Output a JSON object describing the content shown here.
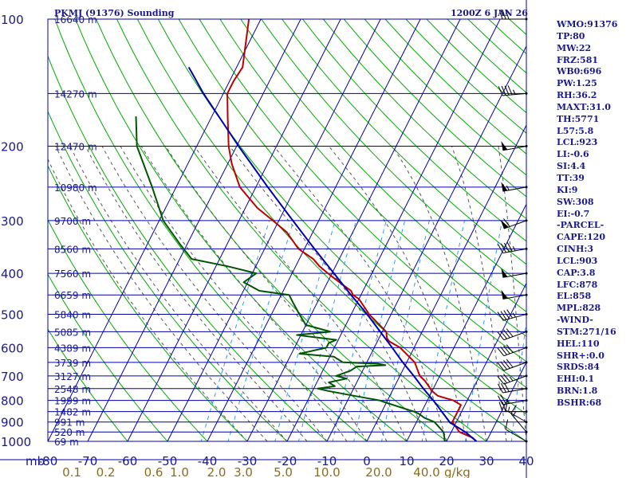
{
  "header": {
    "title": "PKMJ (91376) Sounding",
    "time": "1200Z  6 JAN 26"
  },
  "colors": {
    "frame": "#0000aa",
    "temperature": "#bb0000",
    "dewpoint": "#005500",
    "parcel": "#0000aa",
    "dry_adiabat": "#00aa00",
    "moist_adiabat": "#555555",
    "mixing_ratio": "#3399ff",
    "label": "#1a1a8a",
    "mixing_label": "#8a6d1a"
  },
  "chart_data": {
    "type": "skew-t",
    "title": "PKMJ (91376) Sounding",
    "pressure_levels": [
      100,
      200,
      300,
      400,
      500,
      600,
      700,
      800,
      900,
      1000
    ],
    "pressure_tick_labels": [
      "100",
      "200",
      "300",
      "400",
      "500",
      "600",
      "700",
      "800",
      "900",
      "1000"
    ],
    "pressure_unit_label": "mb",
    "temperature_ticks": [
      -80,
      -70,
      -60,
      -50,
      -40,
      -30,
      -20,
      -10,
      0,
      10,
      20,
      30,
      40
    ],
    "temperature_tick_labels": [
      "-80",
      "-70",
      "-60",
      "-50",
      "-40",
      "-30",
      "-20",
      "-10",
      "0",
      "10",
      "20",
      "30",
      "40"
    ],
    "xlim": [
      -80,
      40
    ],
    "ylim": [
      1000,
      100
    ],
    "height_labels": [
      {
        "p": 1000,
        "text": "69 m"
      },
      {
        "p": 950,
        "text": "520 m"
      },
      {
        "p": 900,
        "text": "991 m"
      },
      {
        "p": 850,
        "text": "1482 m"
      },
      {
        "p": 800,
        "text": "1999 m"
      },
      {
        "p": 750,
        "text": "2548 m"
      },
      {
        "p": 700,
        "text": "3127 m"
      },
      {
        "p": 650,
        "text": "3739 m"
      },
      {
        "p": 600,
        "text": "4389 m"
      },
      {
        "p": 550,
        "text": "5085 m"
      },
      {
        "p": 500,
        "text": "5840 m"
      },
      {
        "p": 450,
        "text": "6659 m"
      },
      {
        "p": 400,
        "text": "7560 m"
      },
      {
        "p": 350,
        "text": "8560 m"
      },
      {
        "p": 300,
        "text": "9700 m"
      },
      {
        "p": 250,
        "text": "10980 m"
      },
      {
        "p": 200,
        "text": "12470 m"
      },
      {
        "p": 150,
        "text": "14270 m"
      },
      {
        "p": 100,
        "text": "16640 m"
      }
    ],
    "mixing_ratio_labels": [
      "0.1",
      "0.2",
      "0.6",
      "1.0",
      "2.0",
      "3.0",
      "5.0",
      "10.0",
      "20.0",
      "40.0",
      "g/kg"
    ],
    "mixing_ratio_label_temps": [
      -74,
      -65.5,
      -53.5,
      -47,
      -37.7,
      -31,
      -21,
      -10,
      3,
      15
    ],
    "temperature": [
      {
        "p": 1000,
        "t": 27.5
      },
      {
        "p": 980,
        "t": 26
      },
      {
        "p": 950,
        "t": 22
      },
      {
        "p": 900,
        "t": 19
      },
      {
        "p": 850,
        "t": 19
      },
      {
        "p": 820,
        "t": 19
      },
      {
        "p": 800,
        "t": 16.5
      },
      {
        "p": 780,
        "t": 12
      },
      {
        "p": 760,
        "t": 10
      },
      {
        "p": 720,
        "t": 7
      },
      {
        "p": 700,
        "t": 5
      },
      {
        "p": 650,
        "t": 2
      },
      {
        "p": 600,
        "t": -3.5
      },
      {
        "p": 580,
        "t": -7
      },
      {
        "p": 570,
        "t": -8
      },
      {
        "p": 550,
        "t": -9
      },
      {
        "p": 500,
        "t": -15.5
      },
      {
        "p": 460,
        "t": -20
      },
      {
        "p": 450,
        "t": -22
      },
      {
        "p": 440,
        "t": -23
      },
      {
        "p": 430,
        "t": -25
      },
      {
        "p": 410,
        "t": -29
      },
      {
        "p": 400,
        "t": -31
      },
      {
        "p": 390,
        "t": -33
      },
      {
        "p": 385,
        "t": -34
      },
      {
        "p": 370,
        "t": -36.5
      },
      {
        "p": 350,
        "t": -41.5
      },
      {
        "p": 320,
        "t": -46.5
      },
      {
        "p": 300,
        "t": -51.5
      },
      {
        "p": 280,
        "t": -57
      },
      {
        "p": 250,
        "t": -64
      },
      {
        "p": 220,
        "t": -69
      },
      {
        "p": 200,
        "t": -72
      },
      {
        "p": 170,
        "t": -76
      },
      {
        "p": 150,
        "t": -79
      },
      {
        "p": 140,
        "t": -79
      },
      {
        "p": 130,
        "t": -78.5
      },
      {
        "p": 100,
        "t": -83
      }
    ],
    "dewpoint": [
      {
        "p": 1000,
        "t": 19.5
      },
      {
        "p": 980,
        "t": 19
      },
      {
        "p": 950,
        "t": 18
      },
      {
        "p": 900,
        "t": 14.5
      },
      {
        "p": 880,
        "t": 11.5
      },
      {
        "p": 860,
        "t": 9.5
      },
      {
        "p": 850,
        "t": 8
      },
      {
        "p": 845,
        "t": 7
      },
      {
        "p": 830,
        "t": 4
      },
      {
        "p": 810,
        "t": 0
      },
      {
        "p": 800,
        "t": -2
      },
      {
        "p": 790,
        "t": -5.5
      },
      {
        "p": 780,
        "t": -9
      },
      {
        "p": 760,
        "t": -16
      },
      {
        "p": 750,
        "t": -19
      },
      {
        "p": 740,
        "t": -15
      },
      {
        "p": 725,
        "t": -17
      },
      {
        "p": 710,
        "t": -13
      },
      {
        "p": 700,
        "t": -16
      },
      {
        "p": 680,
        "t": -13
      },
      {
        "p": 665,
        "t": -12
      },
      {
        "p": 660,
        "t": -5
      },
      {
        "p": 655,
        "t": -7
      },
      {
        "p": 650,
        "t": -16
      },
      {
        "p": 630,
        "t": -19
      },
      {
        "p": 620,
        "t": -28
      },
      {
        "p": 600,
        "t": -22
      },
      {
        "p": 585,
        "t": -22
      },
      {
        "p": 575,
        "t": -20.5
      },
      {
        "p": 560,
        "t": -31
      },
      {
        "p": 550,
        "t": -23
      },
      {
        "p": 530,
        "t": -30
      },
      {
        "p": 500,
        "t": -33
      },
      {
        "p": 470,
        "t": -36
      },
      {
        "p": 450,
        "t": -38
      },
      {
        "p": 440,
        "t": -46
      },
      {
        "p": 420,
        "t": -51
      },
      {
        "p": 400,
        "t": -49
      },
      {
        "p": 385,
        "t": -57
      },
      {
        "p": 370,
        "t": -67
      },
      {
        "p": 340,
        "t": -72
      },
      {
        "p": 300,
        "t": -79
      },
      {
        "p": 250,
        "t": -86
      },
      {
        "p": 200,
        "t": -95
      },
      {
        "p": 170,
        "t": -99
      }
    ],
    "parcel": [
      {
        "p": 1000,
        "t": 27.5
      },
      {
        "p": 950,
        "t": 23.5
      },
      {
        "p": 903,
        "t": 18.5
      },
      {
        "p": 850,
        "t": 15
      },
      {
        "p": 800,
        "t": 11.5
      },
      {
        "p": 750,
        "t": 7.5
      },
      {
        "p": 700,
        "t": 3.5
      },
      {
        "p": 650,
        "t": -1
      },
      {
        "p": 600,
        "t": -5.5
      },
      {
        "p": 550,
        "t": -10.5
      },
      {
        "p": 500,
        "t": -16
      },
      {
        "p": 450,
        "t": -22.5
      },
      {
        "p": 400,
        "t": -29.5
      },
      {
        "p": 350,
        "t": -37.5
      },
      {
        "p": 300,
        "t": -46.5
      },
      {
        "p": 250,
        "t": -57
      },
      {
        "p": 200,
        "t": -69.5
      },
      {
        "p": 150,
        "t": -85
      },
      {
        "p": 130,
        "t": -92
      }
    ],
    "wind_barbs": [
      {
        "p": 1000,
        "dir": 300,
        "spd": 10
      },
      {
        "p": 950,
        "dir": 320,
        "spd": 15
      },
      {
        "p": 900,
        "dir": 300,
        "spd": 15
      },
      {
        "p": 850,
        "dir": 270,
        "spd": 20
      },
      {
        "p": 800,
        "dir": 260,
        "spd": 25
      },
      {
        "p": 750,
        "dir": 260,
        "spd": 30
      },
      {
        "p": 700,
        "dir": 250,
        "spd": 35
      },
      {
        "p": 650,
        "dir": 250,
        "spd": 40
      },
      {
        "p": 600,
        "dir": 250,
        "spd": 40
      },
      {
        "p": 550,
        "dir": 250,
        "spd": 40
      },
      {
        "p": 500,
        "dir": 255,
        "spd": 45
      },
      {
        "p": 450,
        "dir": 260,
        "spd": 50
      },
      {
        "p": 400,
        "dir": 260,
        "spd": 50
      },
      {
        "p": 350,
        "dir": 260,
        "spd": 45
      },
      {
        "p": 300,
        "dir": 250,
        "spd": 60
      },
      {
        "p": 250,
        "dir": 260,
        "spd": 55
      },
      {
        "p": 200,
        "dir": 260,
        "spd": 50
      },
      {
        "p": 150,
        "dir": 265,
        "spd": 45
      },
      {
        "p": 100,
        "dir": 270,
        "spd": 30
      }
    ]
  },
  "indices": [
    "WMO:91376",
    "TP:80",
    "MW:22",
    "FRZ:581",
    "WB0:696",
    "PW:1.25",
    "RH:36.2",
    "MAXT:31.0",
    "TH:5771",
    "L57:5.8",
    "LCL:923",
    "LI:-0.6",
    "SI:4.4",
    "TT:39",
    "KI:9",
    "SW:308",
    "EI:-0.7",
    "-PARCEL-",
    "CAPE:120",
    "CINH:3",
    "LCL:903",
    "CAP:3.8",
    "LFC:878",
    "EL:858",
    "MPL:828",
    "-WIND-",
    "STM:271/16",
    "HEL:110",
    "SHR+:0.0",
    "SRDS:84",
    "EHI:0.1",
    "BRN:1.8",
    "BSHR:68"
  ]
}
